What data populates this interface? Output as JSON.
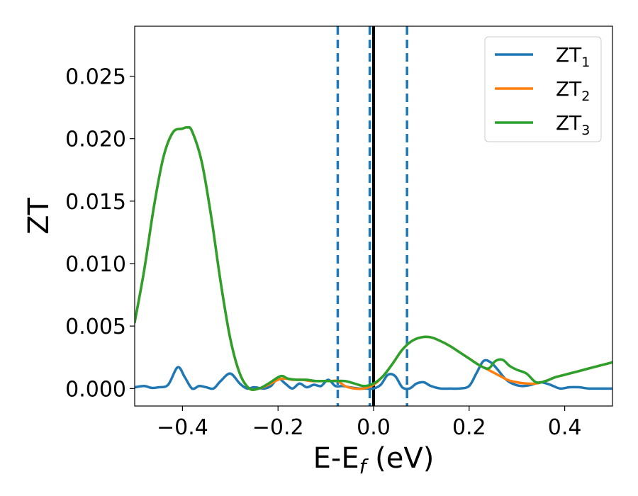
{
  "chart_data": {
    "type": "line",
    "xlabel": "E-E",
    "xlabel_sub": "f",
    "xlabel_unit": " (eV)",
    "ylabel": "ZT",
    "xlim": [
      -0.5,
      0.5
    ],
    "ylim": [
      -0.0014,
      0.029
    ],
    "xticks": [
      -0.4,
      -0.2,
      0.0,
      0.2,
      0.4
    ],
    "xtick_labels": [
      "−0.4",
      "−0.2",
      "0.0",
      "0.2",
      "0.4"
    ],
    "yticks": [
      0.0,
      0.005,
      0.01,
      0.015,
      0.02,
      0.025
    ],
    "ytick_labels": [
      "0.000",
      "0.005",
      "0.010",
      "0.015",
      "0.020",
      "0.025"
    ],
    "grid": false,
    "legend_position": "top-right",
    "vertical_lines": [
      {
        "x": -0.075,
        "style": "dashed",
        "color": "#1f77b4"
      },
      {
        "x": -0.008,
        "style": "dashed",
        "color": "#1f77b4"
      },
      {
        "x": 0.0,
        "style": "solid",
        "color": "#000000"
      },
      {
        "x": 0.07,
        "style": "dashed",
        "color": "#1f77b4"
      }
    ],
    "series": [
      {
        "name": "ZT",
        "name_sub": "1",
        "color": "#1f77b4",
        "x": [
          -0.5,
          -0.48,
          -0.465,
          -0.45,
          -0.43,
          -0.41,
          -0.395,
          -0.38,
          -0.365,
          -0.35,
          -0.335,
          -0.32,
          -0.3,
          -0.28,
          -0.265,
          -0.25,
          -0.23,
          -0.215,
          -0.2,
          -0.185,
          -0.17,
          -0.155,
          -0.14,
          -0.125,
          -0.11,
          -0.095,
          -0.08,
          -0.065,
          -0.05,
          -0.03,
          -0.015,
          0.0,
          0.015,
          0.03,
          0.045,
          0.06,
          0.075,
          0.09,
          0.105,
          0.12,
          0.14,
          0.16,
          0.18,
          0.2,
          0.215,
          0.23,
          0.245,
          0.26,
          0.275,
          0.29,
          0.31,
          0.33,
          0.35,
          0.37,
          0.39,
          0.41,
          0.43,
          0.45,
          0.47,
          0.5
        ],
        "y": [
          0.0001,
          0.0002,
          5e-05,
          0.0001,
          0.0003,
          0.0017,
          0.0009,
          0.0,
          0.0002,
          0.0001,
          0.0,
          0.0006,
          0.0012,
          0.0004,
          0.0,
          0.0001,
          0.0,
          0.0002,
          0.0008,
          0.0004,
          0.0,
          0.0004,
          0.0001,
          0.0003,
          0.0002,
          0.0007,
          0.0002,
          0.0002,
          0.0001,
          0.0,
          0.0,
          0.0,
          0.0003,
          0.0011,
          0.001,
          0.0001,
          0.0,
          0.0004,
          0.0005,
          0.0002,
          0.0,
          0.0,
          0.0,
          0.0002,
          0.0012,
          0.0022,
          0.0021,
          0.0015,
          0.0008,
          0.0004,
          0.0002,
          0.0003,
          0.0005,
          0.0003,
          0.0,
          0.0001,
          0.0001,
          0.0,
          0.0,
          0.0
        ]
      },
      {
        "name": "ZT",
        "name_sub": "2",
        "color": "#ff7f0e",
        "x": [
          -0.5,
          -0.48,
          -0.46,
          -0.44,
          -0.42,
          -0.4,
          -0.39,
          -0.38,
          -0.36,
          -0.34,
          -0.32,
          -0.3,
          -0.28,
          -0.26,
          -0.24,
          -0.22,
          -0.2,
          -0.185,
          -0.17,
          -0.15,
          -0.13,
          -0.11,
          -0.09,
          -0.075,
          -0.06,
          -0.04,
          -0.02,
          0.0,
          0.02,
          0.04,
          0.06,
          0.08,
          0.1,
          0.12,
          0.14,
          0.16,
          0.18,
          0.2,
          0.22,
          0.24,
          0.26,
          0.28,
          0.3,
          0.32,
          0.34,
          0.36,
          0.38,
          0.4,
          0.42,
          0.44,
          0.46,
          0.48,
          0.5
        ],
        "y": [
          0.0053,
          0.0095,
          0.0145,
          0.0185,
          0.0205,
          0.0208,
          0.0209,
          0.0206,
          0.0182,
          0.0138,
          0.0085,
          0.004,
          0.0012,
          0.0,
          0.0,
          0.0003,
          0.0007,
          0.0008,
          0.0007,
          0.0007,
          0.0006,
          0.0006,
          0.0006,
          0.0006,
          0.0002,
          0.0,
          0.0,
          0.0003,
          0.001,
          0.002,
          0.0031,
          0.0038,
          0.0041,
          0.0041,
          0.0038,
          0.0034,
          0.0029,
          0.0024,
          0.0019,
          0.0015,
          0.0011,
          0.0007,
          0.0005,
          0.0004,
          0.0004,
          0.0006,
          0.0009,
          0.0011,
          0.0013,
          0.0015,
          0.0017,
          0.0019,
          0.0021
        ]
      },
      {
        "name": "ZT",
        "name_sub": "3",
        "color": "#2ca02c",
        "x": [
          -0.5,
          -0.48,
          -0.46,
          -0.44,
          -0.42,
          -0.4,
          -0.39,
          -0.38,
          -0.36,
          -0.34,
          -0.32,
          -0.3,
          -0.28,
          -0.26,
          -0.24,
          -0.22,
          -0.2,
          -0.19,
          -0.18,
          -0.16,
          -0.14,
          -0.12,
          -0.1,
          -0.08,
          -0.06,
          -0.04,
          -0.02,
          0.0,
          0.02,
          0.04,
          0.06,
          0.08,
          0.1,
          0.12,
          0.14,
          0.16,
          0.18,
          0.2,
          0.22,
          0.24,
          0.255,
          0.27,
          0.285,
          0.3,
          0.32,
          0.34,
          0.36,
          0.38,
          0.4,
          0.42,
          0.44,
          0.46,
          0.48,
          0.5
        ],
        "y": [
          0.0053,
          0.0095,
          0.0145,
          0.0185,
          0.0205,
          0.0208,
          0.0209,
          0.0206,
          0.0182,
          0.0138,
          0.0085,
          0.004,
          0.0012,
          0.0,
          0.0,
          0.0004,
          0.0009,
          0.001,
          0.0008,
          0.0007,
          0.0007,
          0.0006,
          0.0006,
          0.0006,
          0.0006,
          0.0004,
          0.0002,
          0.0004,
          0.001,
          0.002,
          0.0031,
          0.0038,
          0.0041,
          0.0041,
          0.0038,
          0.0034,
          0.0029,
          0.0024,
          0.0019,
          0.0016,
          0.0022,
          0.0023,
          0.0018,
          0.0015,
          0.0012,
          0.0005,
          0.0006,
          0.0009,
          0.0011,
          0.0013,
          0.0015,
          0.0017,
          0.0019,
          0.0021
        ]
      }
    ]
  }
}
